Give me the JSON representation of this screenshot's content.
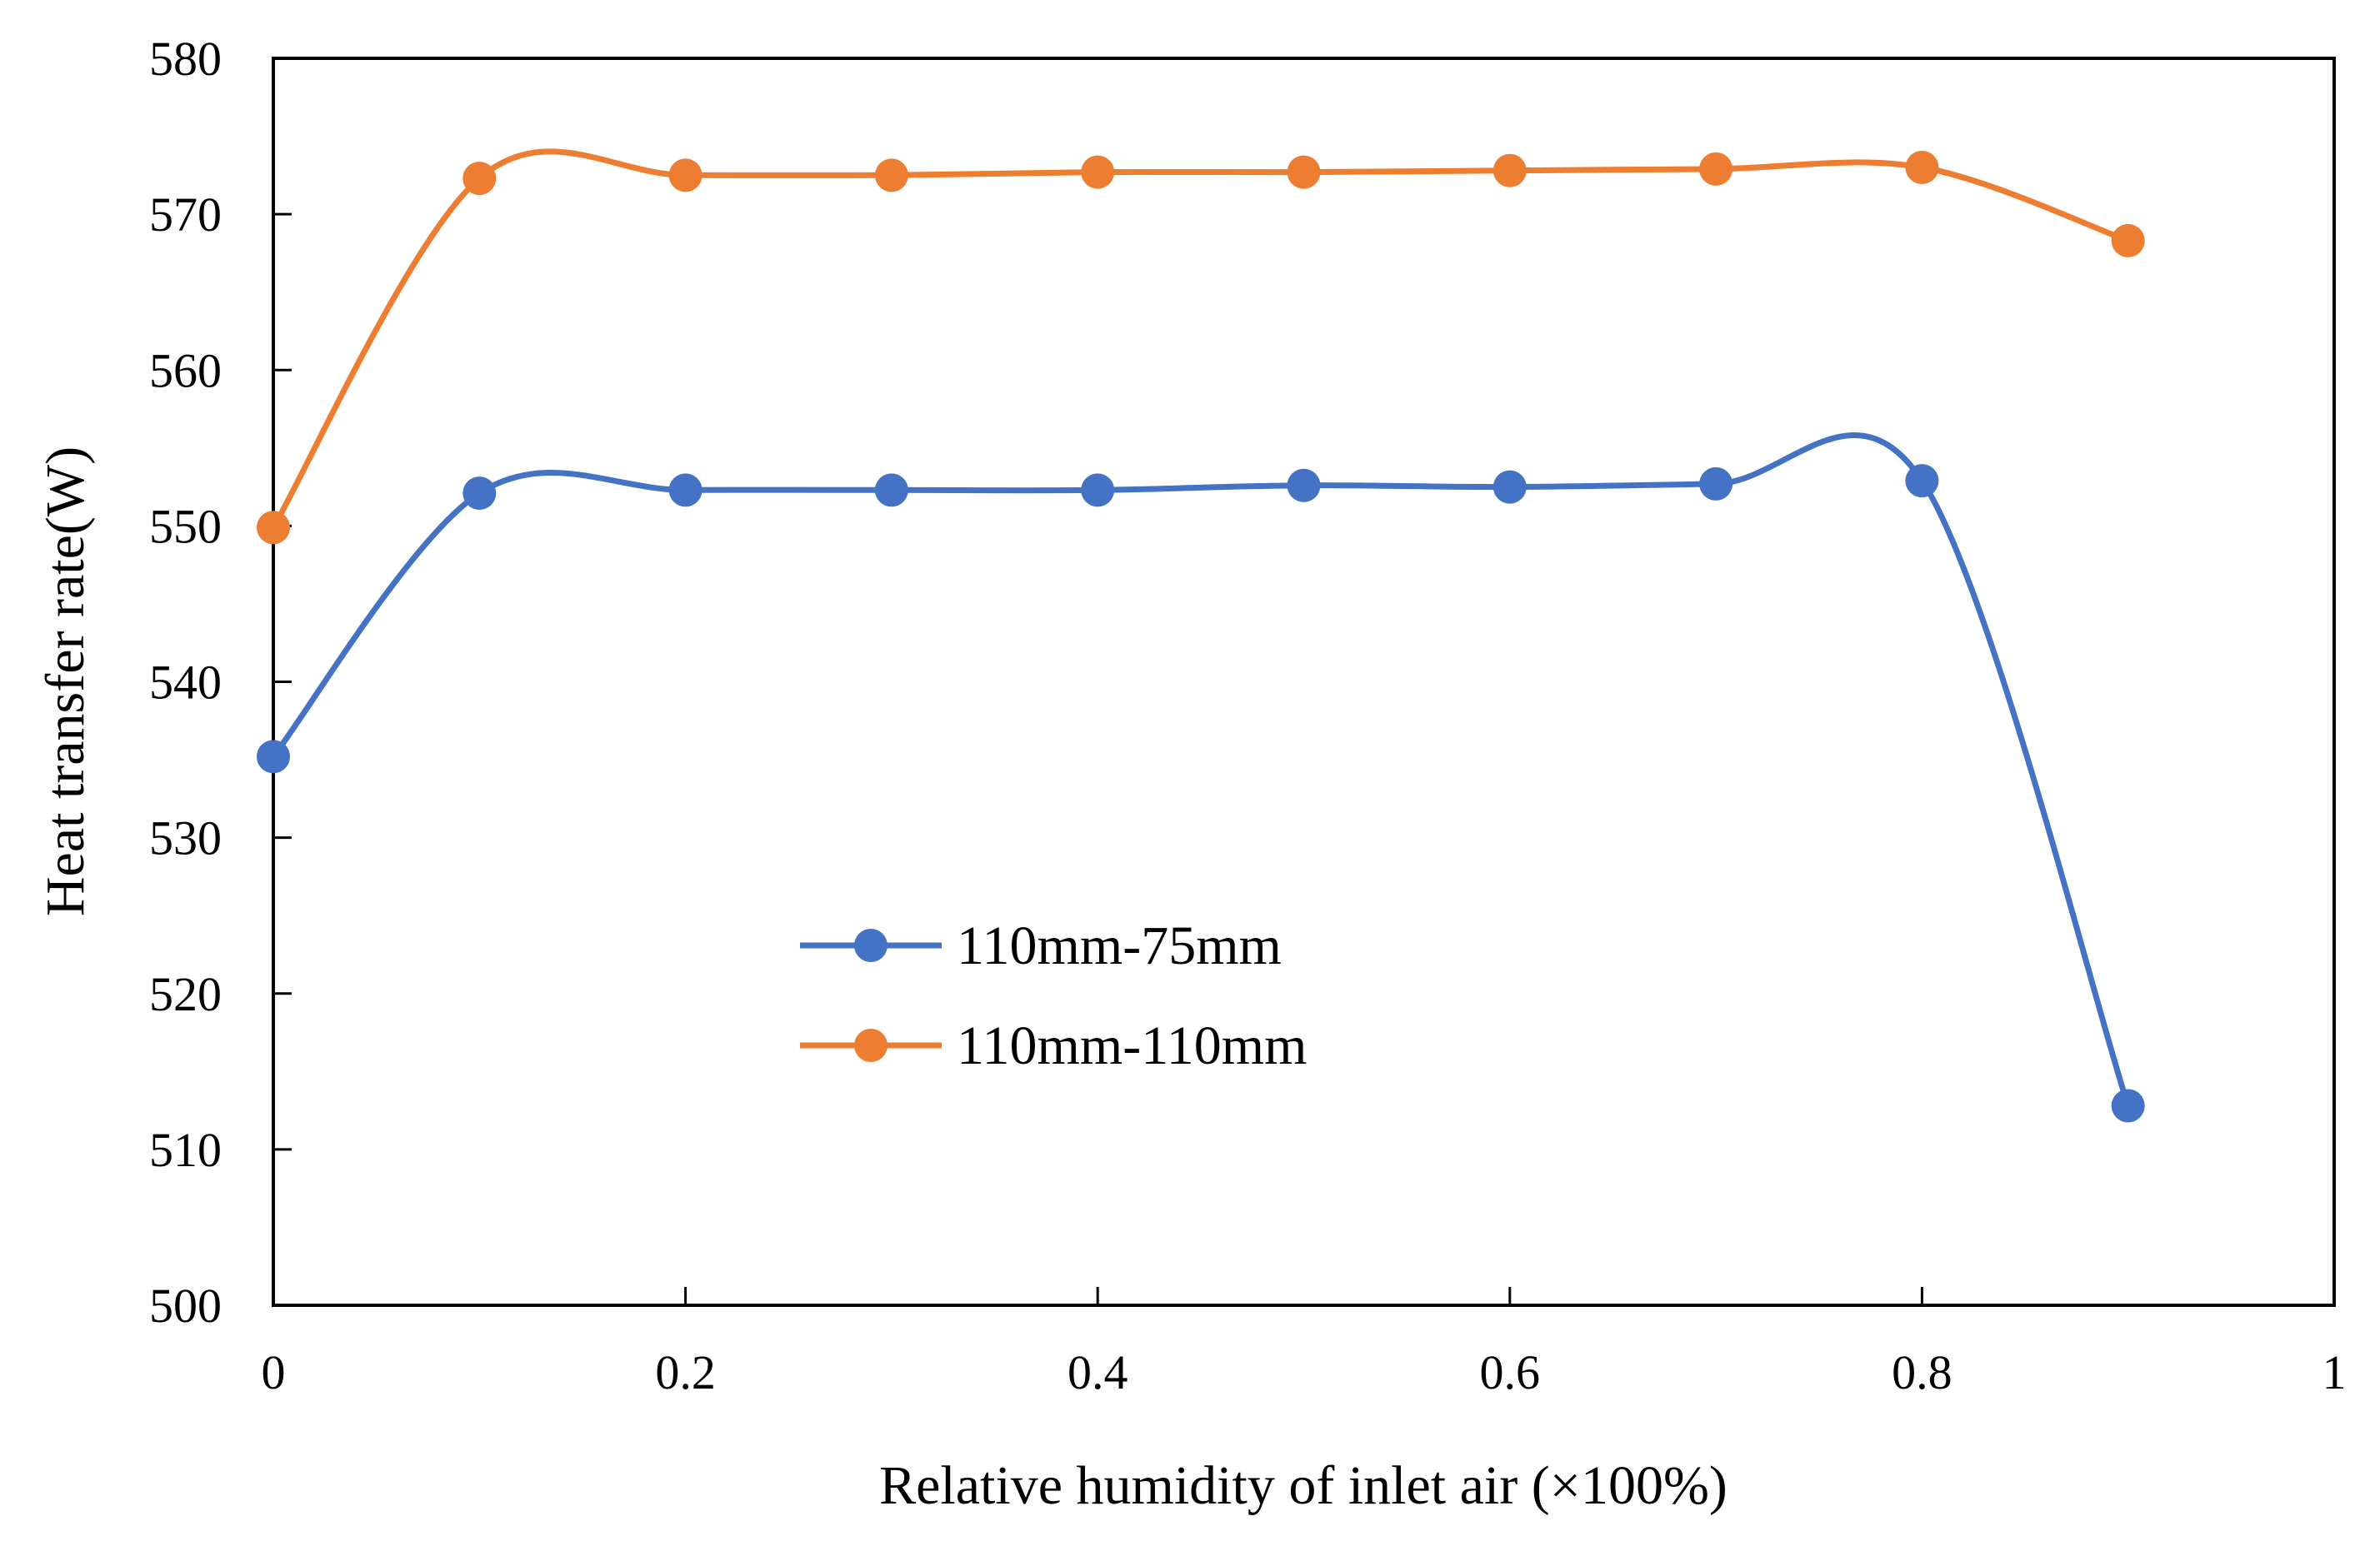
{
  "chart_data": {
    "type": "line",
    "title": "",
    "xlabel": "Relative humidity of inlet air (×100%)",
    "ylabel": "Heat transfer rate(W)",
    "xlim": [
      0,
      1
    ],
    "ylim": [
      500,
      580
    ],
    "x_ticks": [
      0,
      0.2,
      0.4,
      0.6,
      0.8,
      1
    ],
    "x_tick_labels": [
      "0",
      "0.2",
      "0.4",
      "0.6",
      "0.8",
      "1"
    ],
    "y_ticks": [
      500,
      510,
      520,
      530,
      540,
      550,
      560,
      570,
      580
    ],
    "y_tick_labels": [
      "500",
      "510",
      "520",
      "530",
      "540",
      "550",
      "560",
      "570",
      "580"
    ],
    "grid": false,
    "smooth": true,
    "legend_position": "center-left",
    "x": [
      0,
      0.1,
      0.2,
      0.3,
      0.4,
      0.5,
      0.6,
      0.7,
      0.8,
      0.9
    ],
    "series": [
      {
        "name": "110mm-75mm",
        "color": "#4472C4",
        "marker": "circle",
        "values": [
          535.2,
          552.1,
          552.3,
          552.3,
          552.3,
          552.6,
          552.5,
          552.7,
          552.9,
          512.8
        ]
      },
      {
        "name": "110mm-110mm",
        "color": "#ED7D31",
        "marker": "circle",
        "values": [
          549.9,
          572.3,
          572.5,
          572.5,
          572.7,
          572.7,
          572.8,
          572.9,
          573.0,
          568.3
        ]
      }
    ]
  }
}
